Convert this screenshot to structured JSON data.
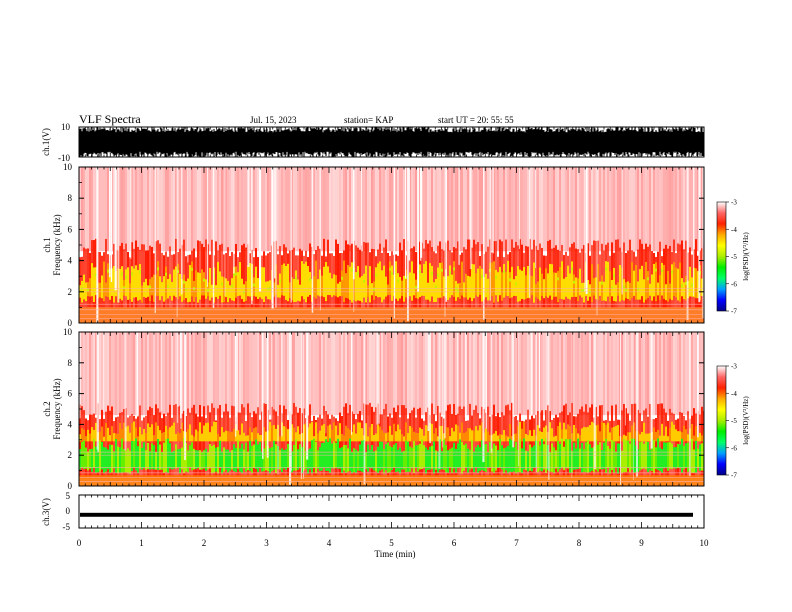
{
  "header": {
    "title": "VLF Spectra",
    "date": "Jul. 15, 2023",
    "station": "station= KAP",
    "start": "start  UT  =   20: 55: 55"
  },
  "chart_data": [
    {
      "type": "line",
      "panel": "ch1-waveform",
      "ylabel": "ch.1(V)",
      "ylim": [
        -10,
        10
      ],
      "yticks": [
        "10",
        "-10"
      ],
      "xlim": [
        0,
        10
      ],
      "note": "dense broadband waveform filling most of the range",
      "color": "#000000"
    },
    {
      "type": "heatmap",
      "panel": "ch1-spectrogram",
      "ylabel": "ch.1\nFrequency (kHz)",
      "ylim": [
        0,
        10
      ],
      "yticks": [
        "0",
        "2",
        "4",
        "6",
        "8",
        "10"
      ],
      "xlim": [
        0,
        10
      ],
      "dominant_band_khz": [
        1,
        4.5
      ],
      "colorbar": {
        "label": "log(PSD)(V²/Hz)",
        "range": [
          -7,
          -3
        ],
        "ticks": [
          "-3",
          "-4",
          "-5",
          "-6",
          "-7"
        ],
        "colors": [
          "#000088",
          "#0000ff",
          "#00a0ff",
          "#00ff66",
          "#00ee00",
          "#aaee00",
          "#ffff00",
          "#ffaa00",
          "#ff2200",
          "#ff6666",
          "#ffffff"
        ]
      }
    },
    {
      "type": "heatmap",
      "panel": "ch2-spectrogram",
      "ylabel": "ch.2\nFrequency (kHz)",
      "ylim": [
        0,
        10
      ],
      "yticks": [
        "0",
        "2",
        "4",
        "6",
        "8",
        "10"
      ],
      "xlim": [
        0,
        10
      ],
      "dominant_band_khz": [
        0.5,
        3.5
      ],
      "colorbar": {
        "label": "log(PSD)(V²/Hz)",
        "range": [
          -7,
          -3
        ],
        "ticks": [
          "-3",
          "-4",
          "-5",
          "-6",
          "-7"
        ],
        "colors": [
          "#000088",
          "#0000ff",
          "#00a0ff",
          "#00ff66",
          "#00ee00",
          "#aaee00",
          "#ffff00",
          "#ffaa00",
          "#ff2200",
          "#ff6666",
          "#ffffff"
        ]
      }
    },
    {
      "type": "line",
      "panel": "ch3-waveform",
      "ylabel": "ch.3(V)",
      "ylim": [
        -5,
        5
      ],
      "yticks": [
        "5",
        "0",
        "-5"
      ],
      "xlim": [
        0,
        10
      ],
      "xlabel": "Time  (min)",
      "xticks": [
        "0",
        "1",
        "2",
        "3",
        "4",
        "5",
        "6",
        "7",
        "8",
        "9",
        "10"
      ],
      "note": "narrow constant band near -1 V",
      "color": "#000000"
    }
  ]
}
